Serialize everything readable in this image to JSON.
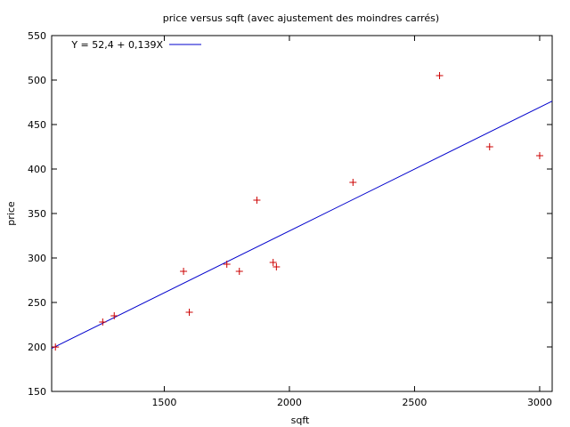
{
  "chart_data": {
    "type": "scatter",
    "title": "price versus sqft (avec ajustement des moindres carrés)",
    "xlabel": "sqft",
    "ylabel": "price",
    "xlim": [
      1050,
      3050
    ],
    "ylim": [
      150,
      550
    ],
    "xticks": [
      1500,
      2000,
      2500,
      3000
    ],
    "yticks": [
      150,
      200,
      250,
      300,
      350,
      400,
      450,
      500,
      550
    ],
    "legend_position": "top-left",
    "grid": false,
    "colors": {
      "points": "#cc0000",
      "fit_line": "#0000cc",
      "axes": "#000000"
    },
    "points": [
      {
        "x": 1065,
        "y": 199.9
      },
      {
        "x": 1254,
        "y": 228.0
      },
      {
        "x": 1300,
        "y": 235.0
      },
      {
        "x": 1577,
        "y": 285.0
      },
      {
        "x": 1600,
        "y": 239.0
      },
      {
        "x": 1750,
        "y": 293.0
      },
      {
        "x": 1800,
        "y": 285.0
      },
      {
        "x": 1870,
        "y": 365.0
      },
      {
        "x": 1935,
        "y": 295.0
      },
      {
        "x": 1948,
        "y": 290.0
      },
      {
        "x": 2254,
        "y": 385.0
      },
      {
        "x": 2600,
        "y": 505.0
      },
      {
        "x": 2800,
        "y": 425.0
      },
      {
        "x": 3000,
        "y": 415.0
      }
    ],
    "fit_line": {
      "label": "Y = 52,4 + 0,139X",
      "intercept": 52.4,
      "slope": 0.139
    }
  }
}
